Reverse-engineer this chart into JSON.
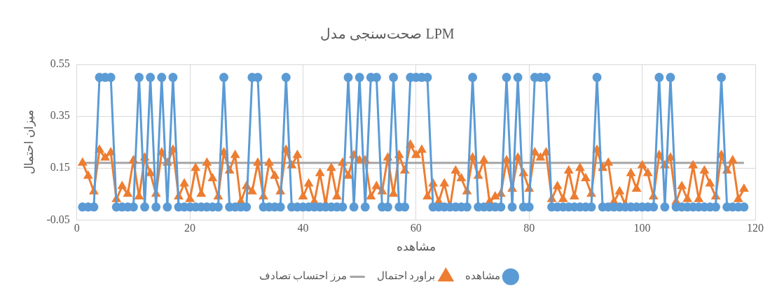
{
  "chart_data": {
    "type": "line",
    "title": "صحت‌سنجی مدل LPM",
    "xlabel": "مشاهده",
    "ylabel": "میزان احتمال",
    "x": [
      1,
      2,
      3,
      4,
      5,
      6,
      7,
      8,
      9,
      10,
      11,
      12,
      13,
      14,
      15,
      16,
      17,
      18,
      19,
      20,
      21,
      22,
      23,
      24,
      25,
      26,
      27,
      28,
      29,
      30,
      31,
      32,
      33,
      34,
      35,
      36,
      37,
      38,
      39,
      40,
      41,
      42,
      43,
      44,
      45,
      46,
      47,
      48,
      49,
      50,
      51,
      52,
      53,
      54,
      55,
      56,
      57,
      58,
      59,
      60,
      61,
      62,
      63,
      64,
      65,
      66,
      67,
      68,
      69,
      70,
      71,
      72,
      73,
      74,
      75,
      76,
      77,
      78,
      79,
      80,
      81,
      82,
      83,
      84,
      85,
      86,
      87,
      88,
      89,
      90,
      91,
      92,
      93,
      94,
      95,
      96,
      97,
      98,
      99,
      100,
      101,
      102,
      103,
      104,
      105,
      106,
      107,
      108,
      109,
      110,
      111,
      112,
      113,
      114,
      115,
      116,
      117,
      118
    ],
    "xlim": [
      0,
      120
    ],
    "xticks": [
      0,
      20,
      40,
      60,
      80,
      100,
      120
    ],
    "ylim": [
      -0.05,
      0.55
    ],
    "yticks": [
      -0.05,
      0.15,
      0.35,
      0.55
    ],
    "grid": true,
    "legend": "bottom",
    "series": [
      {
        "name": "مشاهده",
        "color": "#5b9bd5",
        "marker": "circle",
        "values": [
          0,
          0,
          0,
          0.5,
          0.5,
          0.5,
          0,
          0,
          0,
          0,
          0.5,
          0,
          0.5,
          0,
          0.5,
          0,
          0.5,
          0,
          0,
          0,
          0,
          0,
          0,
          0,
          0,
          0.5,
          0,
          0,
          0,
          0,
          0.5,
          0.5,
          0,
          0,
          0,
          0,
          0.5,
          0,
          0,
          0,
          0,
          0,
          0,
          0,
          0,
          0,
          0,
          0.5,
          0,
          0.5,
          0,
          0.5,
          0.5,
          0,
          0,
          0.5,
          0,
          0,
          0.5,
          0.5,
          0.5,
          0.5,
          0,
          0,
          0,
          0,
          0,
          0,
          0,
          0.5,
          0,
          0,
          0,
          0,
          0,
          0.5,
          0,
          0.5,
          0,
          0,
          0.5,
          0.5,
          0.5,
          0,
          0,
          0,
          0,
          0,
          0,
          0,
          0,
          0.5,
          0,
          0,
          0,
          0,
          0,
          0,
          0,
          0,
          0,
          0,
          0.5,
          0,
          0.5,
          0,
          0,
          0,
          0,
          0,
          0,
          0,
          0,
          0.5,
          0,
          0,
          0,
          0
        ]
      },
      {
        "name": "براورد احتمال",
        "color": "#ed7d31",
        "marker": "triangle",
        "values": [
          0.17,
          0.12,
          0.06,
          0.22,
          0.19,
          0.21,
          0.03,
          0.08,
          0.05,
          0.18,
          0.04,
          0.19,
          0.13,
          0.05,
          0.21,
          0.17,
          0.22,
          0.04,
          0.09,
          0.03,
          0.15,
          0.05,
          0.17,
          0.11,
          0.04,
          0.21,
          0.14,
          0.2,
          0.02,
          0.08,
          0.06,
          0.17,
          0.04,
          0.17,
          0.12,
          0.06,
          0.22,
          0.16,
          0.2,
          0.04,
          0.09,
          0.02,
          0.13,
          0.01,
          0.15,
          0.04,
          0.17,
          0.12,
          0.2,
          0.18,
          0.18,
          0.04,
          0.08,
          0.06,
          0.19,
          0.05,
          0.2,
          0.14,
          0.24,
          0.2,
          0.22,
          0.04,
          0.09,
          0.02,
          0.09,
          0,
          0.14,
          0.11,
          0.06,
          0.19,
          0.12,
          0.18,
          0.02,
          0.04,
          0.05,
          0.18,
          0.07,
          0.19,
          0.13,
          0.07,
          0.21,
          0.19,
          0.21,
          0.03,
          0.08,
          0.03,
          0.14,
          0.04,
          0.15,
          0.11,
          0.05,
          0.22,
          0.15,
          0.17,
          0.02,
          0.06,
          0.01,
          0.13,
          0.07,
          0.16,
          0.13,
          0.04,
          0.2,
          0.16,
          0.19,
          0.02,
          0.08,
          0.03,
          0.16,
          0.03,
          0.14,
          0.09,
          0.04,
          0.2,
          0.14,
          0.18,
          0.03,
          0.07
        ]
      },
      {
        "name": "مرز احتساب تصادف",
        "color": "#a5a5a5",
        "marker": "none",
        "values": [
          0.17,
          0.17,
          0.17,
          0.17,
          0.17,
          0.17,
          0.17,
          0.17,
          0.17,
          0.17,
          0.17,
          0.17,
          0.17,
          0.17,
          0.17,
          0.17,
          0.17,
          0.17,
          0.17,
          0.17,
          0.17,
          0.17,
          0.17,
          0.17,
          0.17,
          0.17,
          0.17,
          0.17,
          0.17,
          0.17,
          0.17,
          0.17,
          0.17,
          0.17,
          0.17,
          0.17,
          0.17,
          0.17,
          0.17,
          0.17,
          0.17,
          0.17,
          0.17,
          0.17,
          0.17,
          0.17,
          0.17,
          0.17,
          0.17,
          0.17,
          0.17,
          0.17,
          0.17,
          0.17,
          0.17,
          0.17,
          0.17,
          0.17,
          0.17,
          0.17,
          0.17,
          0.17,
          0.17,
          0.17,
          0.17,
          0.17,
          0.17,
          0.17,
          0.17,
          0.17,
          0.17,
          0.17,
          0.17,
          0.17,
          0.17,
          0.17,
          0.17,
          0.17,
          0.17,
          0.17,
          0.17,
          0.17,
          0.17,
          0.17,
          0.17,
          0.17,
          0.17,
          0.17,
          0.17,
          0.17,
          0.17,
          0.17,
          0.17,
          0.17,
          0.17,
          0.17,
          0.17,
          0.17,
          0.17,
          0.17,
          0.17,
          0.17,
          0.17,
          0.17,
          0.17,
          0.17,
          0.17,
          0.17,
          0.17,
          0.17,
          0.17,
          0.17,
          0.17,
          0.17,
          0.17,
          0.17,
          0.17,
          0.17
        ]
      }
    ]
  }
}
